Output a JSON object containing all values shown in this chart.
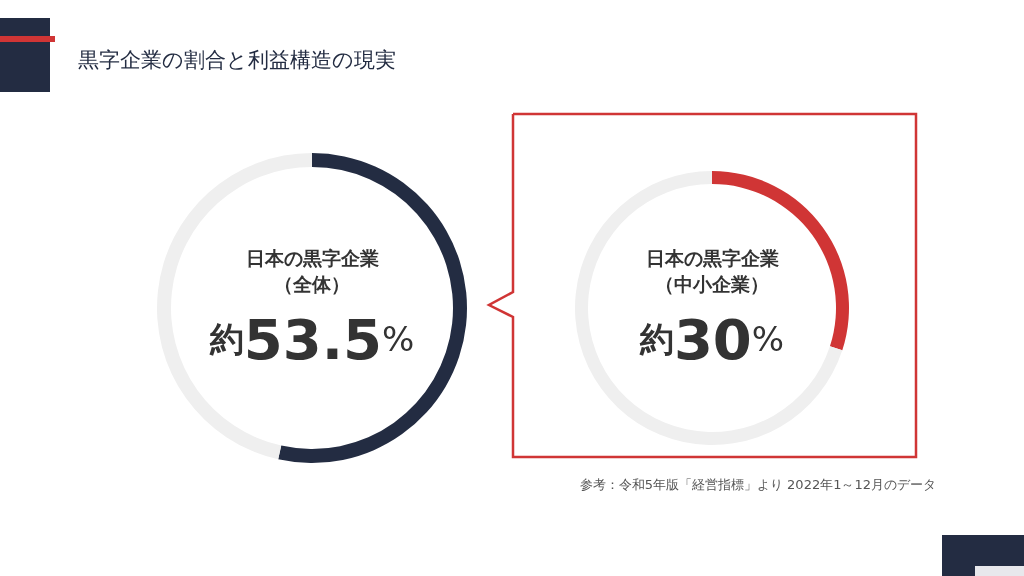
{
  "chart_data": [
    {
      "type": "donut",
      "title": "黒字企業の割合と利益構造の現実",
      "categories": [
        "日本の黒字企業（全体）",
        null
      ],
      "values": [
        53.5,
        46.5
      ],
      "colors": [
        "#232c42",
        "#efefef"
      ],
      "value_labels": [
        "約53.5%",
        null
      ]
    },
    {
      "type": "donut",
      "categories": [
        "日本の黒字企業（中小企業）",
        null
      ],
      "values": [
        30,
        70
      ],
      "colors": [
        "#d03535",
        "#efefef"
      ],
      "value_labels": [
        "約30%",
        null
      ],
      "annotations": [
        "参考：令和5年版「経営指標」より 2022年1～12月のデータ"
      ]
    }
  ]
}
